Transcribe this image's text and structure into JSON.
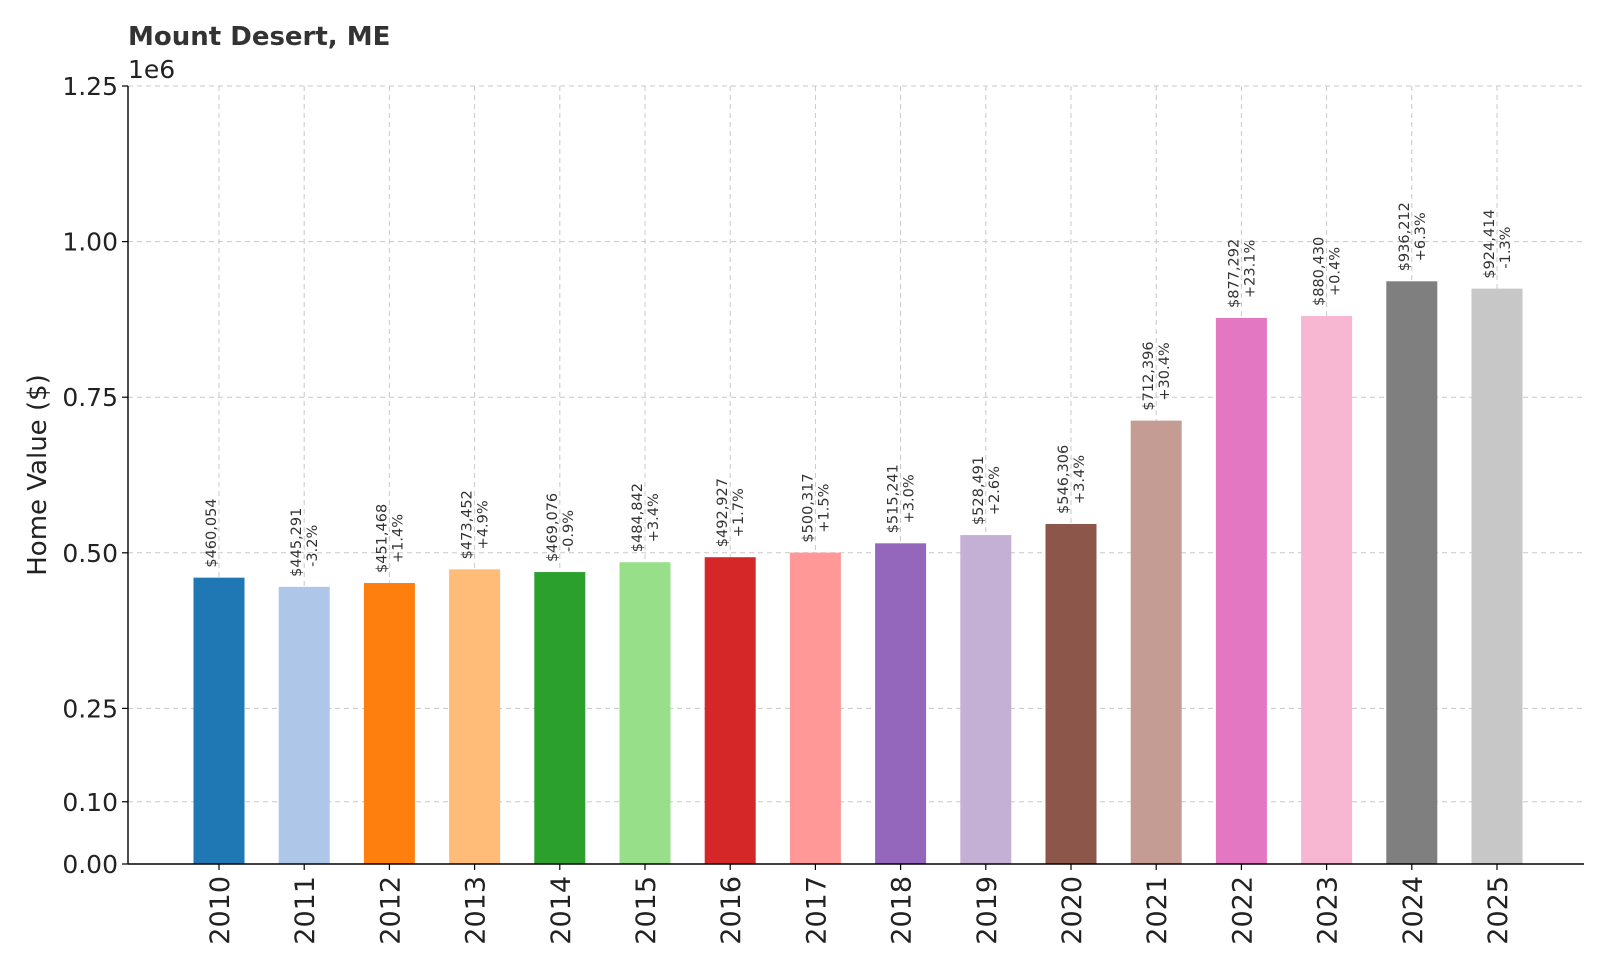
{
  "chart_data": {
    "type": "bar",
    "title": "Mount Desert, ME",
    "ylabel": "Home Value ($)",
    "xlabel": "",
    "y_offset_label": "1e6",
    "ylim": [
      0,
      1250000
    ],
    "yticks": [
      0,
      100000,
      250000,
      500000,
      750000,
      1000000,
      1250000
    ],
    "ytick_labels": [
      "0.00",
      "0.10",
      "0.25",
      "0.50",
      "0.75",
      "1.00",
      "1.25"
    ],
    "grid": true,
    "categories": [
      "2010",
      "2011",
      "2012",
      "2013",
      "2014",
      "2015",
      "2016",
      "2017",
      "2018",
      "2019",
      "2020",
      "2021",
      "2022",
      "2023",
      "2024",
      "2025"
    ],
    "values": [
      460054,
      445291,
      451468,
      473452,
      469076,
      484842,
      492927,
      500317,
      515241,
      528491,
      546306,
      712396,
      877292,
      880430,
      936212,
      924414
    ],
    "value_labels": [
      "$460,054",
      "$445,291",
      "$451,468",
      "$473,452",
      "$469,076",
      "$484,842",
      "$492,927",
      "$500,317",
      "$515,241",
      "$528,491",
      "$546,306",
      "$712,396",
      "$877,292",
      "$880,430",
      "$936,212",
      "$924,414"
    ],
    "change_labels": [
      "",
      "-3.2%",
      "+1.4%",
      "+4.9%",
      "-0.9%",
      "+3.4%",
      "+1.7%",
      "+1.5%",
      "+3.0%",
      "+2.6%",
      "+3.4%",
      "+30.4%",
      "+23.1%",
      "+0.4%",
      "+6.3%",
      "-1.3%"
    ],
    "colors": [
      "#1f77b4",
      "#aec7e8",
      "#ff7f0e",
      "#ffbb78",
      "#2ca02c",
      "#98df8a",
      "#d62728",
      "#ff9896",
      "#9467bd",
      "#c5b0d5",
      "#8c564b",
      "#c49c94",
      "#e377c2",
      "#f7b6d2",
      "#7f7f7f",
      "#c7c7c7"
    ]
  }
}
